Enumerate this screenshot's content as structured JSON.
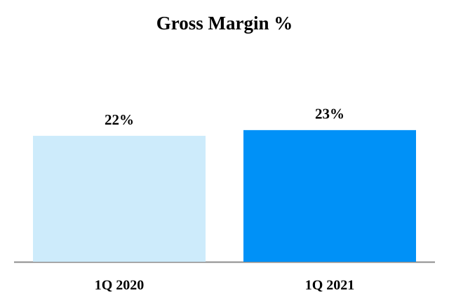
{
  "chart_data": {
    "type": "bar",
    "title": "Gross Margin %",
    "categories": [
      "1Q 2020",
      "1Q 2021"
    ],
    "values": [
      22,
      23
    ],
    "value_labels": [
      "22%",
      "23%"
    ],
    "colors": [
      "#cdebfb",
      "#0091f7"
    ]
  }
}
